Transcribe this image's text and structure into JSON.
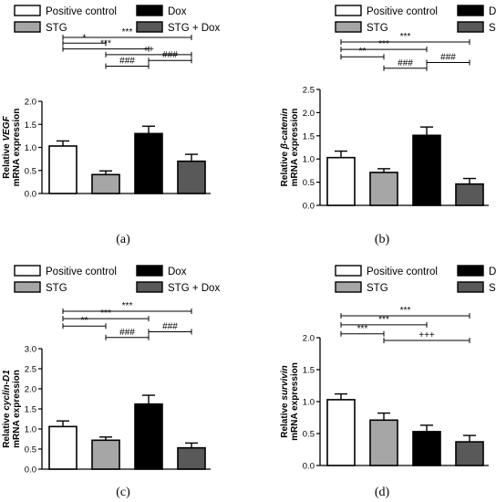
{
  "legend": {
    "items": [
      {
        "label": "Positive control",
        "fill": "#ffffff"
      },
      {
        "label": "Dox",
        "fill": "#000000"
      },
      {
        "label": "STG",
        "fill": "#a6a6a6"
      },
      {
        "label": "STG + Dox",
        "fill": "#595959"
      }
    ]
  },
  "colors": {
    "positive_control": "#ffffff",
    "dox": "#000000",
    "stg": "#a6a6a6",
    "stg_dox": "#595959",
    "axis": "#000000"
  },
  "chart_data": [
    {
      "type": "bar",
      "panel": "(a)",
      "ylabel_prefix": "Relative ",
      "ylabel_gene": "VEGF",
      "ylabel_suffix": "mRNA expression",
      "categories": [
        "Positive control",
        "STG",
        "Dox",
        "STG + Dox"
      ],
      "values": [
        1.03,
        0.41,
        1.3,
        0.7
      ],
      "errors": [
        0.11,
        0.08,
        0.16,
        0.15
      ],
      "ylim": [
        0,
        2.0
      ],
      "yticks": [
        "0.0",
        "0.5",
        "1.0",
        "1.5",
        "2.0"
      ],
      "significance": [
        {
          "from": 0,
          "to": 2,
          "label": "***",
          "level": 0.7
        },
        {
          "from": 0,
          "to": 3,
          "label": "***",
          "level": 0
        },
        {
          "from": 0,
          "to": 1,
          "label": "*",
          "level": 0.35
        },
        {
          "from": 1,
          "to": 3,
          "label": "++",
          "level": 1.05
        },
        {
          "from": 2,
          "to": 3,
          "label": "###",
          "level": 1.4
        },
        {
          "from": 1,
          "to": 2,
          "label": "###",
          "level": 1.75
        }
      ]
    },
    {
      "type": "bar",
      "panel": "(b)",
      "ylabel_prefix": "Relative ",
      "ylabel_gene": "β-catenin",
      "ylabel_suffix": "mRNA expression",
      "categories": [
        "Positive control",
        "STG",
        "Dox",
        "STG + Dox"
      ],
      "values": [
        1.03,
        0.71,
        1.51,
        0.46
      ],
      "errors": [
        0.14,
        0.08,
        0.18,
        0.12
      ],
      "ylim": [
        0,
        2.5
      ],
      "yticks": [
        "0.0",
        "0.5",
        "1.0",
        "1.5",
        "2.0",
        "2.5"
      ],
      "significance": [
        {
          "from": 0,
          "to": 3,
          "label": "***",
          "level": 0
        },
        {
          "from": 0,
          "to": 2,
          "label": "***",
          "level": 0.45
        },
        {
          "from": 0,
          "to": 1,
          "label": "**",
          "level": 0.9
        },
        {
          "from": 2,
          "to": 3,
          "label": "###",
          "level": 1.25
        },
        {
          "from": 1,
          "to": 2,
          "label": "###",
          "level": 1.6
        }
      ]
    },
    {
      "type": "bar",
      "panel": "(c)",
      "ylabel_prefix": "Relative ",
      "ylabel_gene": "cyclin-D1",
      "ylabel_suffix": "mRNA expression",
      "categories": [
        "Positive control",
        "STG",
        "Dox",
        "STG + Dox"
      ],
      "values": [
        1.06,
        0.72,
        1.62,
        0.53
      ],
      "errors": [
        0.14,
        0.08,
        0.22,
        0.12
      ],
      "ylim": [
        0,
        3.0
      ],
      "yticks": [
        "0.0",
        "0.5",
        "1.0",
        "1.5",
        "2.0",
        "2.5",
        "3.0"
      ],
      "significance": [
        {
          "from": 0,
          "to": 3,
          "label": "***",
          "level": 0
        },
        {
          "from": 0,
          "to": 2,
          "label": "***",
          "level": 0.45
        },
        {
          "from": 0,
          "to": 1,
          "label": "**",
          "level": 0.9
        },
        {
          "from": 2,
          "to": 3,
          "label": "###",
          "level": 1.25
        },
        {
          "from": 1,
          "to": 2,
          "label": "###",
          "level": 1.6
        }
      ]
    },
    {
      "type": "bar",
      "panel": "(d)",
      "ylabel_prefix": "Relative ",
      "ylabel_gene": "survivin",
      "ylabel_suffix": "mRNA expression",
      "categories": [
        "Positive control",
        "STG",
        "Dox",
        "STG + Dox"
      ],
      "values": [
        1.03,
        0.71,
        0.53,
        0.37
      ],
      "errors": [
        0.09,
        0.11,
        0.1,
        0.1
      ],
      "ylim": [
        0,
        2.0
      ],
      "yticks": [
        "0.0",
        "0.5",
        "1.0",
        "1.5",
        "2.0"
      ],
      "significance": [
        {
          "from": 0,
          "to": 3,
          "label": "***",
          "level": 0
        },
        {
          "from": 0,
          "to": 2,
          "label": "***",
          "level": 0.55
        },
        {
          "from": 0,
          "to": 1,
          "label": "***",
          "level": 1.1
        },
        {
          "from": 1,
          "to": 3,
          "label": "+++",
          "level": 1.5
        }
      ]
    }
  ]
}
